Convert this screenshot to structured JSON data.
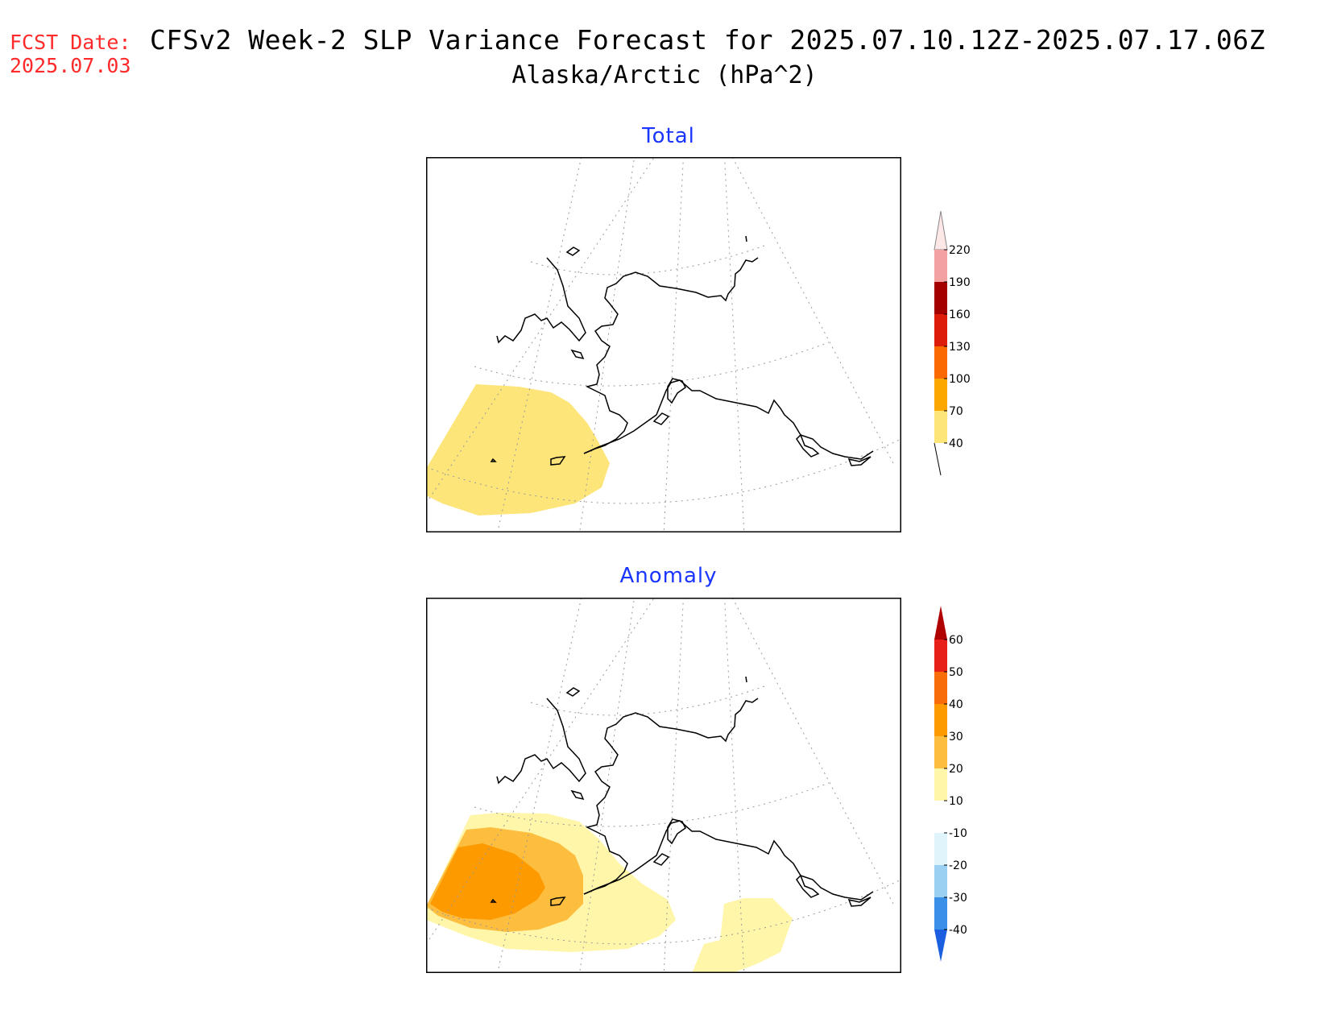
{
  "header": {
    "fcst_label": "FCST Date:",
    "fcst_date": "2025.07.03",
    "title": "CFSv2 Week-2 SLP Variance Forecast for 2025.07.10.12Z-2025.07.17.06Z",
    "subtitle": "Alaska/Arctic (hPa^2)"
  },
  "panels": {
    "total": {
      "title": "Total",
      "colorbar": {
        "levels": [
          "220",
          "190",
          "160",
          "130",
          "100",
          "70",
          "40"
        ],
        "colors": [
          "#fde7e7",
          "#f4a1a1",
          "#a50000",
          "#dd1c0a",
          "#fb6a00",
          "#fca700",
          "#fde57a"
        ]
      }
    },
    "anomaly": {
      "title": "Anomaly",
      "colorbar": {
        "levels": [
          "60",
          "50",
          "40",
          "30",
          "20",
          "10",
          "-10",
          "-20",
          "-30",
          "-40"
        ],
        "colors": [
          "#b00000",
          "#e8201a",
          "#f86c0a",
          "#fc9a00",
          "#fdbd3e",
          "#fff6aa",
          "#ffffff",
          "#dff5fb",
          "#9ad0f2",
          "#3a90e6",
          "#1b5fe0"
        ]
      }
    }
  }
}
